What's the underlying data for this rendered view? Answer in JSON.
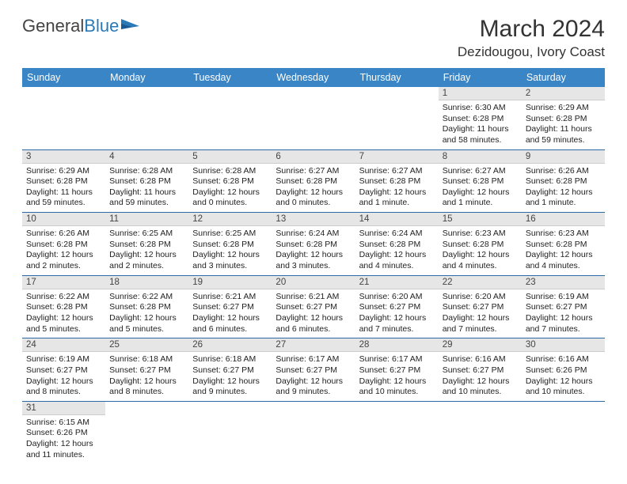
{
  "logo": {
    "text1": "General",
    "text2": "Blue"
  },
  "title": "March 2024",
  "location": "Dezidougou, Ivory Coast",
  "colors": {
    "header_bg": "#3a85c6",
    "row_border": "#2a6aa8",
    "daynum_bg": "#e6e6e6"
  },
  "weekdays": [
    "Sunday",
    "Monday",
    "Tuesday",
    "Wednesday",
    "Thursday",
    "Friday",
    "Saturday"
  ],
  "days": [
    {
      "n": 1,
      "sr": "6:30 AM",
      "ss": "6:28 PM",
      "dl": "11 hours and 58 minutes."
    },
    {
      "n": 2,
      "sr": "6:29 AM",
      "ss": "6:28 PM",
      "dl": "11 hours and 59 minutes."
    },
    {
      "n": 3,
      "sr": "6:29 AM",
      "ss": "6:28 PM",
      "dl": "11 hours and 59 minutes."
    },
    {
      "n": 4,
      "sr": "6:28 AM",
      "ss": "6:28 PM",
      "dl": "11 hours and 59 minutes."
    },
    {
      "n": 5,
      "sr": "6:28 AM",
      "ss": "6:28 PM",
      "dl": "12 hours and 0 minutes."
    },
    {
      "n": 6,
      "sr": "6:27 AM",
      "ss": "6:28 PM",
      "dl": "12 hours and 0 minutes."
    },
    {
      "n": 7,
      "sr": "6:27 AM",
      "ss": "6:28 PM",
      "dl": "12 hours and 1 minute."
    },
    {
      "n": 8,
      "sr": "6:27 AM",
      "ss": "6:28 PM",
      "dl": "12 hours and 1 minute."
    },
    {
      "n": 9,
      "sr": "6:26 AM",
      "ss": "6:28 PM",
      "dl": "12 hours and 1 minute."
    },
    {
      "n": 10,
      "sr": "6:26 AM",
      "ss": "6:28 PM",
      "dl": "12 hours and 2 minutes."
    },
    {
      "n": 11,
      "sr": "6:25 AM",
      "ss": "6:28 PM",
      "dl": "12 hours and 2 minutes."
    },
    {
      "n": 12,
      "sr": "6:25 AM",
      "ss": "6:28 PM",
      "dl": "12 hours and 3 minutes."
    },
    {
      "n": 13,
      "sr": "6:24 AM",
      "ss": "6:28 PM",
      "dl": "12 hours and 3 minutes."
    },
    {
      "n": 14,
      "sr": "6:24 AM",
      "ss": "6:28 PM",
      "dl": "12 hours and 4 minutes."
    },
    {
      "n": 15,
      "sr": "6:23 AM",
      "ss": "6:28 PM",
      "dl": "12 hours and 4 minutes."
    },
    {
      "n": 16,
      "sr": "6:23 AM",
      "ss": "6:28 PM",
      "dl": "12 hours and 4 minutes."
    },
    {
      "n": 17,
      "sr": "6:22 AM",
      "ss": "6:28 PM",
      "dl": "12 hours and 5 minutes."
    },
    {
      "n": 18,
      "sr": "6:22 AM",
      "ss": "6:28 PM",
      "dl": "12 hours and 5 minutes."
    },
    {
      "n": 19,
      "sr": "6:21 AM",
      "ss": "6:27 PM",
      "dl": "12 hours and 6 minutes."
    },
    {
      "n": 20,
      "sr": "6:21 AM",
      "ss": "6:27 PM",
      "dl": "12 hours and 6 minutes."
    },
    {
      "n": 21,
      "sr": "6:20 AM",
      "ss": "6:27 PM",
      "dl": "12 hours and 7 minutes."
    },
    {
      "n": 22,
      "sr": "6:20 AM",
      "ss": "6:27 PM",
      "dl": "12 hours and 7 minutes."
    },
    {
      "n": 23,
      "sr": "6:19 AM",
      "ss": "6:27 PM",
      "dl": "12 hours and 7 minutes."
    },
    {
      "n": 24,
      "sr": "6:19 AM",
      "ss": "6:27 PM",
      "dl": "12 hours and 8 minutes."
    },
    {
      "n": 25,
      "sr": "6:18 AM",
      "ss": "6:27 PM",
      "dl": "12 hours and 8 minutes."
    },
    {
      "n": 26,
      "sr": "6:18 AM",
      "ss": "6:27 PM",
      "dl": "12 hours and 9 minutes."
    },
    {
      "n": 27,
      "sr": "6:17 AM",
      "ss": "6:27 PM",
      "dl": "12 hours and 9 minutes."
    },
    {
      "n": 28,
      "sr": "6:17 AM",
      "ss": "6:27 PM",
      "dl": "12 hours and 10 minutes."
    },
    {
      "n": 29,
      "sr": "6:16 AM",
      "ss": "6:27 PM",
      "dl": "12 hours and 10 minutes."
    },
    {
      "n": 30,
      "sr": "6:16 AM",
      "ss": "6:26 PM",
      "dl": "12 hours and 10 minutes."
    },
    {
      "n": 31,
      "sr": "6:15 AM",
      "ss": "6:26 PM",
      "dl": "12 hours and 11 minutes."
    }
  ],
  "labels": {
    "sunrise": "Sunrise:",
    "sunset": "Sunset:",
    "daylight": "Daylight:"
  },
  "first_weekday_index": 5
}
